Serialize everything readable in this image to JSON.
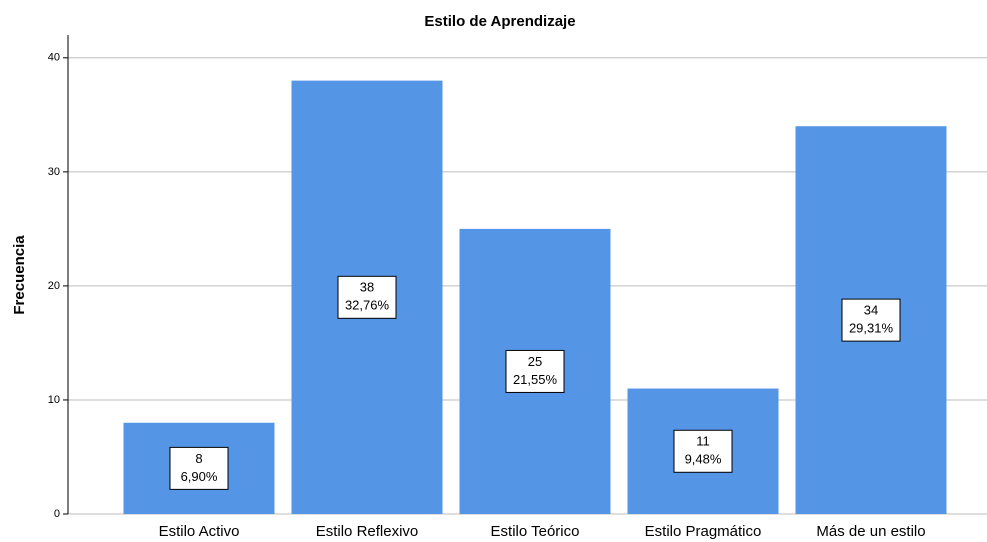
{
  "chart_data": {
    "type": "bar",
    "title": "Estilo de Aprendizaje",
    "y_label": "Frecuencia",
    "categories": [
      "Estilo Activo",
      "Estilo Reflexivo",
      "Estilo Teórico",
      "Estilo Pragmático",
      "Más de un estilo"
    ],
    "values": [
      8,
      38,
      25,
      11,
      34
    ],
    "percent_labels": [
      "6,90%",
      "32,76%",
      "21,55%",
      "9,48%",
      "29,31%"
    ],
    "color": "#5595e6",
    "ylim": [
      0,
      42
    ],
    "yticks": [
      0,
      10,
      20,
      30,
      40
    ],
    "grid": true
  }
}
